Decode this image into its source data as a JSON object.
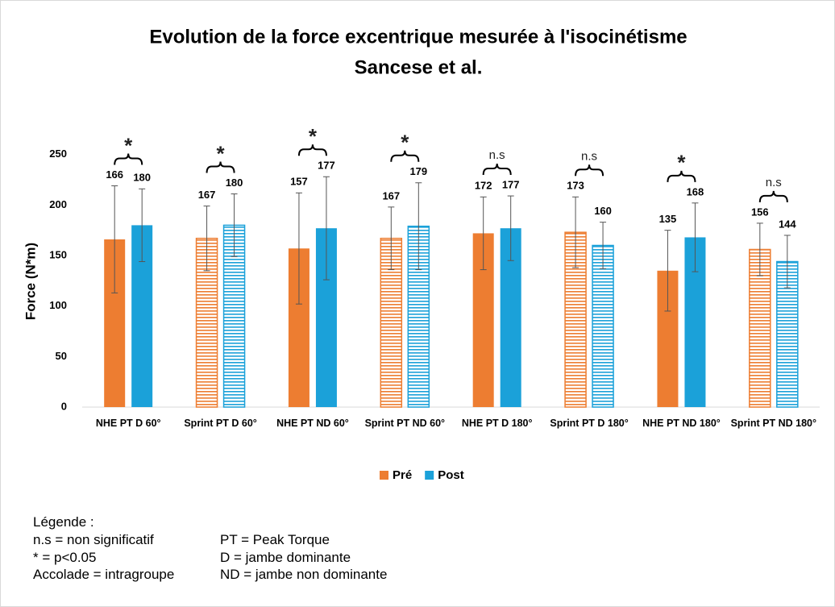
{
  "chart_data": {
    "type": "bar",
    "title": "Evolution de la force excentrique mesurée à l'isocinétisme",
    "subtitle": "Sancese et al.",
    "y_label": "Force (N*m)",
    "categories": [
      "NHE PT D 60°",
      "Sprint PT D 60°",
      "NHE PT ND 60°",
      "Sprint PT ND 60°",
      "NHE PT D 180°",
      "Sprint PT D 180°",
      "NHE PT ND 180°",
      "Sprint PT ND 180°"
    ],
    "series": [
      {
        "name": "Pré",
        "color": "#ED7D31",
        "values": [
          166,
          167,
          157,
          167,
          172,
          173,
          135,
          156
        ],
        "errors": [
          53,
          32,
          55,
          31,
          36,
          35,
          40,
          26
        ]
      },
      {
        "name": "Post",
        "color": "#1BA1D9",
        "values": [
          180,
          180,
          177,
          179,
          177,
          160,
          168,
          144
        ],
        "errors": [
          36,
          31,
          51,
          43,
          32,
          23,
          34,
          26
        ]
      }
    ],
    "hatched": [
      false,
      true,
      false,
      true,
      false,
      true,
      false,
      true
    ],
    "significance": [
      "*",
      "*",
      "*",
      "*",
      "n.s",
      "n.s",
      "*",
      "n.s"
    ],
    "ylim": [
      0,
      300
    ],
    "yticks": [
      0,
      50,
      100,
      150,
      200,
      250
    ],
    "legend": "bottom"
  },
  "notes": {
    "heading": "Légende :",
    "left": [
      "n.s = non significatif",
      "* = p<0.05",
      "Accolade = intragroupe"
    ],
    "right": [
      "PT = Peak Torque",
      "D = jambe dominante",
      "ND = jambe non dominante"
    ]
  }
}
